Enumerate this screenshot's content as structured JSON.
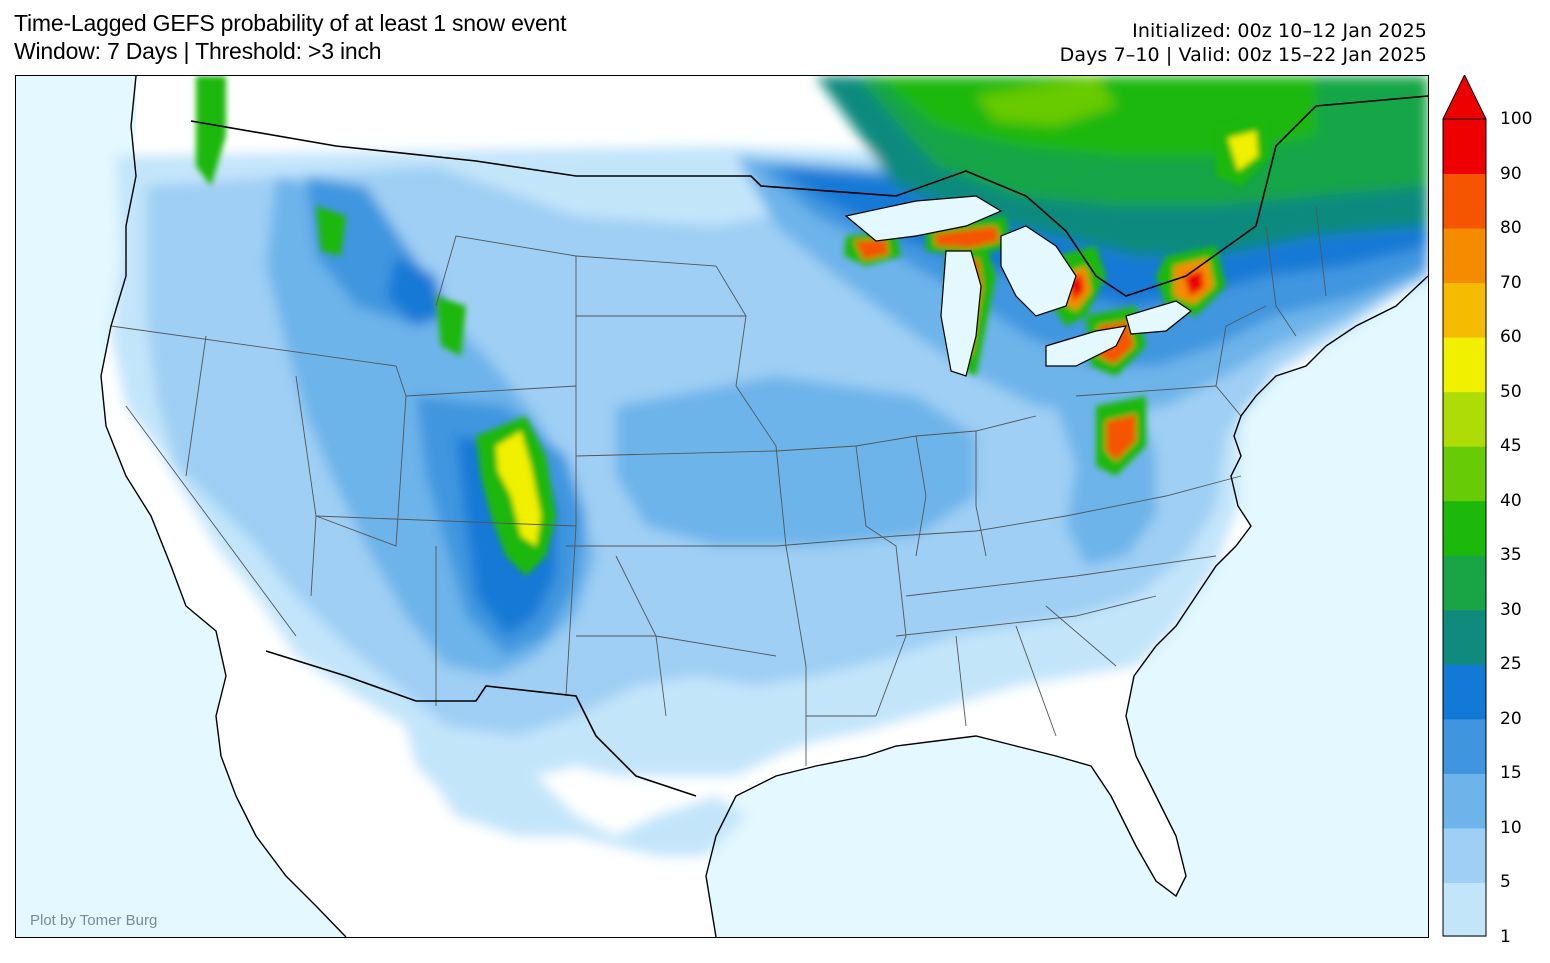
{
  "title": {
    "line1": "Time-Lagged GEFS probability of at least 1 snow event",
    "line2": "Window: 7 Days | Threshold: >3 inch"
  },
  "init": {
    "line1": "Initialized: 00z 10–12 Jan 2025",
    "line2": "Days 7–10 | Valid: 00z 15–22 Jan 2025"
  },
  "credit": "Plot by Tomer Burg",
  "colorbar": {
    "levels": [
      "1",
      "5",
      "10",
      "15",
      "20",
      "25",
      "30",
      "35",
      "40",
      "45",
      "50",
      "60",
      "70",
      "80",
      "90",
      "100"
    ],
    "colors": [
      "#c3e5fa",
      "#9fcff4",
      "#6db4ea",
      "#3f96df",
      "#1279d6",
      "#118a7e",
      "#19a546",
      "#1cb80c",
      "#67cb06",
      "#aedc07",
      "#f0f000",
      "#f5bb00",
      "#f58c00",
      "#f55400",
      "#ee0000"
    ],
    "extend_color": "#ee0000"
  },
  "map": {
    "ocean_color": "#e3f8ff",
    "land_color": "#ffffff"
  }
}
